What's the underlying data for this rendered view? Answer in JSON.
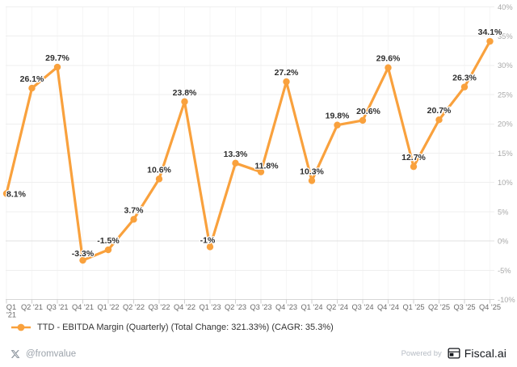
{
  "chart_data": {
    "type": "line",
    "title": "",
    "xlabel": "",
    "ylabel": "",
    "categories": [
      "Q1 '21",
      "Q2 '21",
      "Q3 '21",
      "Q4 '21",
      "Q1 '22",
      "Q2 '22",
      "Q3 '22",
      "Q4 '22",
      "Q1 '23",
      "Q2 '23",
      "Q3 '23",
      "Q4 '23",
      "Q1 '24",
      "Q2 '24",
      "Q3 '24",
      "Q4 '24",
      "Q1 '25",
      "Q2 '25",
      "Q3 '25",
      "Q4 '25"
    ],
    "series": [
      {
        "name": "TTD - EBITDA Margin (Quarterly)",
        "color": "#F9A13D",
        "values": [
          8.1,
          26.1,
          29.7,
          -3.3,
          -1.5,
          3.7,
          10.6,
          23.8,
          -1,
          13.3,
          11.8,
          27.2,
          10.3,
          19.8,
          20.6,
          29.6,
          12.7,
          20.7,
          26.3,
          34.1
        ],
        "point_labels": [
          "8.1%",
          "26.1%",
          "29.7%",
          "-3.3%",
          "-1.5%",
          "3.7%",
          "10.6%",
          "23.8%",
          "-1%",
          "13.3%",
          "11.8%",
          "27.2%",
          "10.3%",
          "19.8%",
          "20.6%",
          "29.6%",
          "12.7%",
          "20.7%",
          "26.3%",
          "34.1%"
        ]
      }
    ],
    "ylim": [
      -10,
      40
    ],
    "ytick_step": 5,
    "ytick_labels": [
      "40%",
      "35%",
      "30%",
      "25%",
      "20%",
      "15%",
      "10%",
      "5%",
      "0%",
      "-5%",
      "-10%"
    ],
    "yaxis_side": "right",
    "grid": true,
    "legend_position": "bottom-left",
    "legend": "TTD - EBITDA Margin (Quarterly) (Total Change: 321.33%) (CAGR: 35.3%)",
    "total_change": "321.33%",
    "cagr": "35.3%"
  },
  "footer": {
    "handle": "@fromvalue",
    "powered_by": "Powered by",
    "brand": "Fiscal.ai"
  },
  "colors": {
    "accent": "#F9A13D",
    "grid_line": "#EFEFEF",
    "vgrid_line": "#F6F6F6",
    "zero_line": "#E0E0E0",
    "axis_line": "#D6D6D6",
    "tick": "#CFCFCF",
    "x_label": "#6B6B6B",
    "y_label": "#A8A8A8",
    "data_label": "#2E2E2E",
    "background": "#FFFFFF"
  }
}
